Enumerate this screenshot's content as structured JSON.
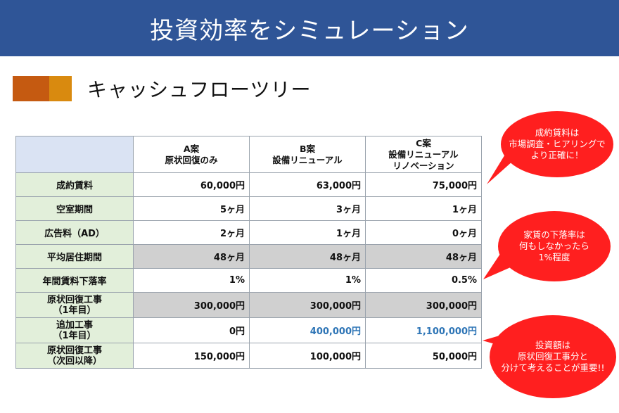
{
  "title": "投資効率をシミュレーション",
  "subtitle": "キャッシュフローツリー",
  "colors": {
    "banner": "#2f5597",
    "accent1": "#c55a11",
    "accent2": "#d98a0f",
    "bubble": "#ff1f1f",
    "highlight_text": "#2e75b6"
  },
  "table": {
    "headers": [
      {
        "line1": "A案",
        "line2": "原状回復のみ",
        "line3": ""
      },
      {
        "line1": "B案",
        "line2": "設備リニューアル",
        "line3": ""
      },
      {
        "line1": "C案",
        "line2": "設備リニューアル",
        "line3": "リノベーション"
      }
    ],
    "rows": [
      {
        "label1": "成約賃料",
        "label2": "",
        "values": [
          "60,000円",
          "63,000円",
          "75,000円"
        ]
      },
      {
        "label1": "空室期間",
        "label2": "",
        "values": [
          "5ヶ月",
          "3ヶ月",
          "1ヶ月"
        ]
      },
      {
        "label1": "広告料（AD）",
        "label2": "",
        "values": [
          "2ヶ月",
          "1ヶ月",
          "0ヶ月"
        ]
      },
      {
        "label1": "平均居住期間",
        "label2": "",
        "values": [
          "48ヶ月",
          "48ヶ月",
          "48ヶ月"
        ]
      },
      {
        "label1": "年間賃料下落率",
        "label2": "",
        "values": [
          "1%",
          "1%",
          "0.5%"
        ]
      },
      {
        "label1": "原状回復工事",
        "label2": "（1年目）",
        "values": [
          "300,000円",
          "300,000円",
          "300,000円"
        ]
      },
      {
        "label1": "追加工事",
        "label2": "（1年目）",
        "values": [
          "0円",
          "400,000円",
          "1,100,000円"
        ]
      },
      {
        "label1": "原状回復工事",
        "label2": "（次回以降）",
        "values": [
          "150,000円",
          "100,000円",
          "50,000円"
        ]
      }
    ]
  },
  "bubbles": [
    {
      "line1": "成約賃料は",
      "line2": "市場調査・ヒアリングで",
      "line3": "より正確に！"
    },
    {
      "line1": "家賃の下落率は",
      "line2": "何もしなかったら",
      "line3": "1%程度"
    },
    {
      "line1": "投資額は",
      "line2": "原状回復工事分と",
      "line3": "分けて考えることが重要!!"
    }
  ]
}
